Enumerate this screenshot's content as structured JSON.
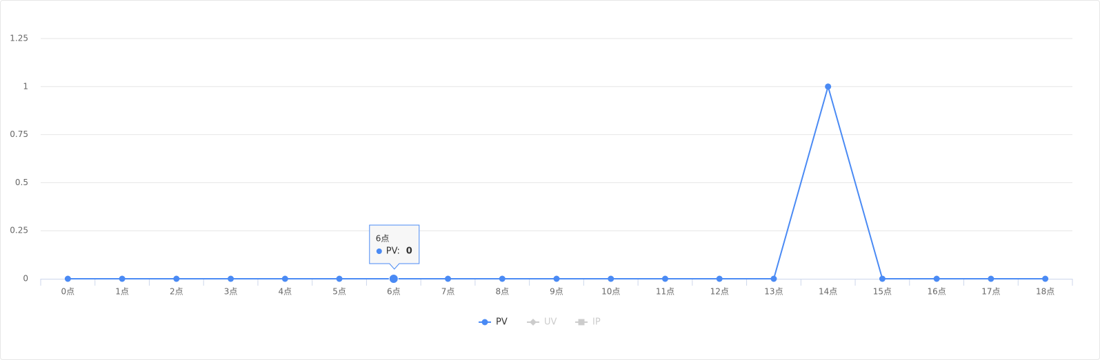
{
  "chart_data": {
    "type": "line",
    "categories": [
      "0点",
      "1点",
      "2点",
      "3点",
      "4点",
      "5点",
      "6点",
      "7点",
      "8点",
      "9点",
      "10点",
      "11点",
      "12点",
      "13点",
      "14点",
      "15点",
      "16点",
      "17点",
      "18点"
    ],
    "series": [
      {
        "name": "PV",
        "color": "#4a8af4",
        "visible": true,
        "values": [
          0,
          0,
          0,
          0,
          0,
          0,
          0,
          0,
          0,
          0,
          0,
          0,
          0,
          0,
          1,
          0,
          0,
          0,
          0
        ]
      },
      {
        "name": "UV",
        "color": "#cccccc",
        "visible": false
      },
      {
        "name": "IP",
        "color": "#cccccc",
        "visible": false
      }
    ],
    "ylim": [
      0,
      1.25
    ],
    "yticks": [
      0,
      0.25,
      0.5,
      0.75,
      1,
      1.25
    ],
    "grid": true,
    "tooltip": {
      "title": "6点",
      "label": "PV:",
      "value": 0
    }
  }
}
